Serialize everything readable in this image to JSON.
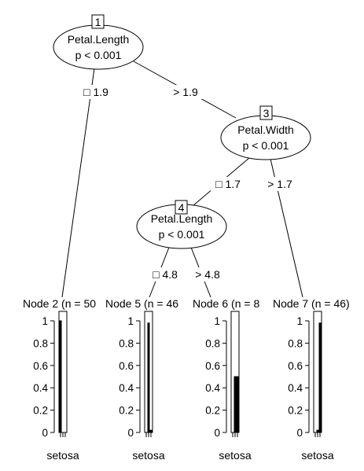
{
  "tree": {
    "inner_nodes": [
      {
        "id": "1",
        "variable": "Petal.Length",
        "pvalue": "p < 0.001"
      },
      {
        "id": "3",
        "variable": "Petal.Width",
        "pvalue": "p < 0.001"
      },
      {
        "id": "4",
        "variable": "Petal.Length",
        "pvalue": "p < 0.001"
      }
    ],
    "edges": [
      {
        "from": "1",
        "to": "2",
        "label": "□ 1.9"
      },
      {
        "from": "1",
        "to": "3",
        "label": "> 1.9"
      },
      {
        "from": "3",
        "to": "4",
        "label": "□ 1.7"
      },
      {
        "from": "3",
        "to": "7",
        "label": "> 1.7"
      },
      {
        "from": "4",
        "to": "5",
        "label": "□ 4.8"
      },
      {
        "from": "4",
        "to": "6",
        "label": "> 4.8"
      }
    ],
    "terminal_nodes": [
      {
        "id": "2",
        "title": "Node 2 (n = 50",
        "x_label": "setosa",
        "proportions": [
          1.0,
          0.0,
          0.0
        ]
      },
      {
        "id": "5",
        "title": "Node 5 (n = 46",
        "x_label": "setosa",
        "proportions": [
          0.0,
          0.98,
          0.02
        ]
      },
      {
        "id": "6",
        "title": "Node 6 (n = 8",
        "x_label": "setosa",
        "proportions": [
          0.0,
          0.5,
          0.5
        ]
      },
      {
        "id": "7",
        "title": "Node 7 (n = 46)",
        "x_label": "setosa",
        "proportions": [
          0.0,
          0.02,
          0.98
        ]
      }
    ],
    "y_ticks": [
      "0",
      "0.2",
      "0.4",
      "0.6",
      "0.8",
      "1"
    ],
    "bar_color": "#000000"
  }
}
